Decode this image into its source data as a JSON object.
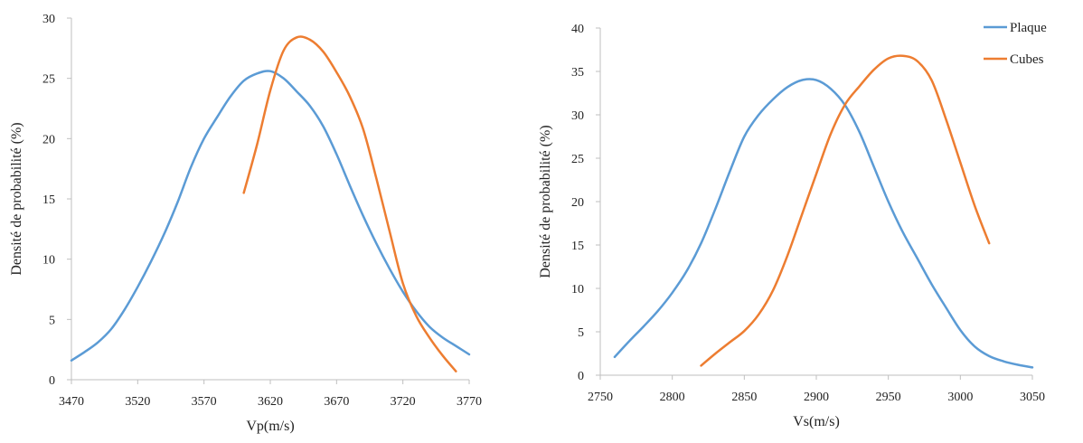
{
  "colors": {
    "plaque": "#5b9bd5",
    "cubes": "#ed7d31",
    "axis": "#bfbfbf",
    "text": "#222222"
  },
  "legend": {
    "position": "top-right",
    "entries": [
      "Plaque",
      "Cubes"
    ]
  },
  "chart_data": [
    {
      "type": "line",
      "title": "",
      "xlabel": "Vp(m/s)",
      "ylabel": "Densité de probabilité (%)",
      "xlim": [
        3470,
        3770
      ],
      "ylim": [
        0,
        30
      ],
      "xticks": [
        3470,
        3520,
        3570,
        3620,
        3670,
        3720,
        3770
      ],
      "yticks": [
        0,
        5,
        10,
        15,
        20,
        25,
        30
      ],
      "grid": false,
      "series": [
        {
          "name": "Plaque",
          "color": "#5b9bd5",
          "points": [
            [
              3470,
              1.6
            ],
            [
              3480,
              2.3
            ],
            [
              3490,
              3.1
            ],
            [
              3500,
              4.2
            ],
            [
              3510,
              5.8
            ],
            [
              3520,
              7.7
            ],
            [
              3530,
              9.8
            ],
            [
              3540,
              12.1
            ],
            [
              3550,
              14.7
            ],
            [
              3560,
              17.6
            ],
            [
              3570,
              20.0
            ],
            [
              3580,
              21.8
            ],
            [
              3590,
              23.5
            ],
            [
              3600,
              24.8
            ],
            [
              3610,
              25.4
            ],
            [
              3620,
              25.6
            ],
            [
              3630,
              25.0
            ],
            [
              3640,
              23.9
            ],
            [
              3650,
              22.7
            ],
            [
              3660,
              21.0
            ],
            [
              3670,
              18.7
            ],
            [
              3680,
              16.1
            ],
            [
              3690,
              13.6
            ],
            [
              3700,
              11.3
            ],
            [
              3710,
              9.2
            ],
            [
              3720,
              7.3
            ],
            [
              3730,
              5.7
            ],
            [
              3740,
              4.4
            ],
            [
              3750,
              3.5
            ],
            [
              3760,
              2.8
            ],
            [
              3770,
              2.1
            ]
          ]
        },
        {
          "name": "Cubes",
          "color": "#ed7d31",
          "points": [
            [
              3600,
              15.5
            ],
            [
              3610,
              19.5
            ],
            [
              3620,
              24.0
            ],
            [
              3630,
              27.3
            ],
            [
              3640,
              28.4
            ],
            [
              3650,
              28.2
            ],
            [
              3660,
              27.2
            ],
            [
              3670,
              25.5
            ],
            [
              3680,
              23.5
            ],
            [
              3690,
              20.8
            ],
            [
              3700,
              16.7
            ],
            [
              3710,
              12.3
            ],
            [
              3720,
              8.0
            ],
            [
              3730,
              5.3
            ],
            [
              3740,
              3.5
            ],
            [
              3750,
              2.0
            ],
            [
              3760,
              0.7
            ]
          ]
        }
      ]
    },
    {
      "type": "line",
      "title": "",
      "xlabel": "Vs(m/s)",
      "ylabel": "Densité de probabilité (%)",
      "xlim": [
        2750,
        3050
      ],
      "ylim": [
        0,
        40
      ],
      "xticks": [
        2750,
        2800,
        2850,
        2900,
        2950,
        3000,
        3050
      ],
      "yticks": [
        0,
        5,
        10,
        15,
        20,
        25,
        30,
        35,
        40
      ],
      "grid": false,
      "legend": "top-right",
      "series": [
        {
          "name": "Plaque",
          "color": "#5b9bd5",
          "points": [
            [
              2760,
              2.1
            ],
            [
              2770,
              3.9
            ],
            [
              2780,
              5.6
            ],
            [
              2790,
              7.4
            ],
            [
              2800,
              9.5
            ],
            [
              2810,
              12.0
            ],
            [
              2820,
              15.2
            ],
            [
              2830,
              19.2
            ],
            [
              2840,
              23.5
            ],
            [
              2850,
              27.5
            ],
            [
              2860,
              30.0
            ],
            [
              2870,
              31.8
            ],
            [
              2880,
              33.2
            ],
            [
              2890,
              34.0
            ],
            [
              2900,
              34.0
            ],
            [
              2910,
              33.0
            ],
            [
              2920,
              31.1
            ],
            [
              2930,
              28.0
            ],
            [
              2940,
              24.0
            ],
            [
              2950,
              20.0
            ],
            [
              2960,
              16.5
            ],
            [
              2970,
              13.5
            ],
            [
              2980,
              10.5
            ],
            [
              2990,
              7.8
            ],
            [
              3000,
              5.2
            ],
            [
              3010,
              3.3
            ],
            [
              3020,
              2.2
            ],
            [
              3030,
              1.6
            ],
            [
              3040,
              1.2
            ],
            [
              3050,
              0.9
            ]
          ]
        },
        {
          "name": "Cubes",
          "color": "#ed7d31",
          "points": [
            [
              2820,
              1.1
            ],
            [
              2830,
              2.5
            ],
            [
              2840,
              3.8
            ],
            [
              2850,
              5.1
            ],
            [
              2860,
              7.0
            ],
            [
              2870,
              9.8
            ],
            [
              2880,
              13.8
            ],
            [
              2890,
              18.5
            ],
            [
              2900,
              23.2
            ],
            [
              2910,
              27.8
            ],
            [
              2920,
              31.2
            ],
            [
              2930,
              33.3
            ],
            [
              2940,
              35.2
            ],
            [
              2950,
              36.5
            ],
            [
              2960,
              36.8
            ],
            [
              2970,
              36.2
            ],
            [
              2980,
              34.0
            ],
            [
              2990,
              29.5
            ],
            [
              3000,
              24.5
            ],
            [
              3010,
              19.5
            ],
            [
              3020,
              15.2
            ]
          ]
        }
      ]
    }
  ]
}
